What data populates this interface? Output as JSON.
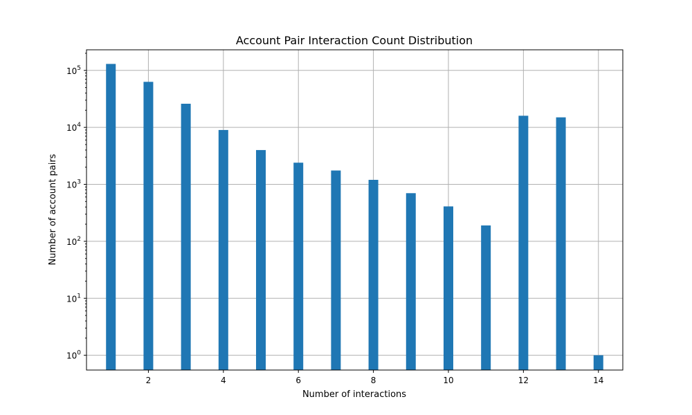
{
  "chart_data": {
    "type": "bar",
    "title": "Account Pair Interaction Count Distribution",
    "xlabel": "Number of interactions",
    "ylabel": "Number of account pairs",
    "x": [
      1,
      2,
      3,
      4,
      5,
      6,
      7,
      8,
      9,
      10,
      11,
      12,
      13,
      14
    ],
    "values": [
      130000,
      63000,
      26000,
      9000,
      4000,
      2400,
      1750,
      1200,
      700,
      410,
      190,
      16000,
      15000,
      1
    ],
    "y_scale": "log",
    "ylim": [
      0.55,
      230000
    ],
    "xlim": [
      0.35,
      14.65
    ],
    "xticks": [
      2,
      4,
      6,
      8,
      10,
      12,
      14
    ],
    "yticks": [
      {
        "value": 1,
        "base": "10",
        "exp": "0"
      },
      {
        "value": 10,
        "base": "10",
        "exp": "1"
      },
      {
        "value": 100,
        "base": "10",
        "exp": "2"
      },
      {
        "value": 1000,
        "base": "10",
        "exp": "3"
      },
      {
        "value": 10000,
        "base": "10",
        "exp": "4"
      },
      {
        "value": 100000,
        "base": "10",
        "exp": "5"
      }
    ],
    "bar_color": "#1f77b4",
    "grid": true
  }
}
